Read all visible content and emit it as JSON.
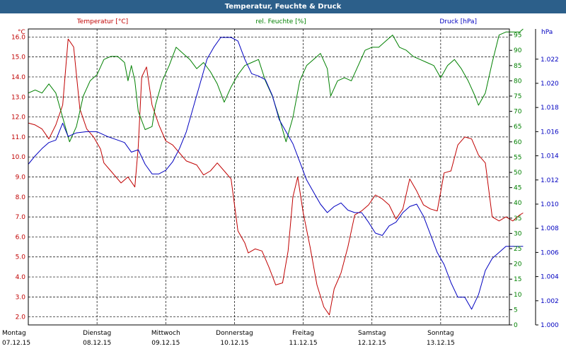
{
  "window": {
    "title": "Temperatur, Feuchte & Druck"
  },
  "colors": {
    "temperature": "#c00000",
    "humidity": "#008000",
    "pressure": "#0000c0",
    "titlebar": "#2c5f8a",
    "grid": "#000000"
  },
  "chart_data": {
    "type": "line",
    "title": "Temperatur, Feuchte & Druck",
    "grid": true,
    "x_labels": [
      {
        "day": "Montag",
        "date": "07.12.15"
      },
      {
        "day": "Dienstag",
        "date": "08.12.15"
      },
      {
        "day": "Mittwoch",
        "date": "09.12.15"
      },
      {
        "day": "Donnerstag",
        "date": "10.12.15"
      },
      {
        "day": "Freitag",
        "date": "11.12.15"
      },
      {
        "day": "Samstag",
        "date": "12.12.15"
      },
      {
        "day": "Sonntag",
        "date": "13.12.15"
      }
    ],
    "xlim": [
      0,
      7
    ],
    "axes": {
      "temperature": {
        "label": "Temperatur [°C]",
        "unit": "°C",
        "ylim": [
          1.6,
          16.4
        ],
        "ticks": [
          "2.0",
          "3.0",
          "4.0",
          "5.0",
          "6.0",
          "7.0",
          "8.0",
          "9.0",
          "10.0",
          "11.0",
          "12.0",
          "13.0",
          "14.0",
          "15.0",
          "16.0"
        ]
      },
      "humidity": {
        "label": "rel. Feuchte [%]",
        "unit": "%",
        "ylim": [
          0,
          97
        ],
        "ticks": [
          "0",
          "5",
          "10",
          "15",
          "20",
          "25",
          "30",
          "35",
          "40",
          "45",
          "50",
          "55",
          "60",
          "65",
          "70",
          "75",
          "80",
          "85",
          "90",
          "95"
        ]
      },
      "pressure": {
        "label": "Druck [hPa]",
        "unit": "hPa",
        "ylim": [
          1000,
          1024.5
        ],
        "ticks": [
          "1.000",
          "1.002",
          "1.004",
          "1.006",
          "1.008",
          "1.010",
          "1.012",
          "1.014",
          "1.016",
          "1.018",
          "1.020",
          "1.022"
        ]
      }
    },
    "series": [
      {
        "name": "Temperatur [°C]",
        "axis": "temperature",
        "color": "#c00000",
        "points": [
          [
            0,
            11.7
          ],
          [
            0.1,
            11.6
          ],
          [
            0.2,
            11.4
          ],
          [
            0.3,
            10.9
          ],
          [
            0.4,
            11.6
          ],
          [
            0.5,
            12.6
          ],
          [
            0.58,
            15.9
          ],
          [
            0.66,
            15.5
          ],
          [
            0.75,
            12.4
          ],
          [
            0.85,
            11.4
          ],
          [
            0.95,
            11.0
          ],
          [
            1.05,
            10.4
          ],
          [
            1.1,
            9.7
          ],
          [
            1.2,
            9.3
          ],
          [
            1.35,
            8.7
          ],
          [
            1.45,
            9.0
          ],
          [
            1.55,
            8.5
          ],
          [
            1.6,
            10.5
          ],
          [
            1.65,
            14.0
          ],
          [
            1.72,
            14.5
          ],
          [
            1.8,
            12.6
          ],
          [
            1.9,
            11.6
          ],
          [
            2.0,
            10.8
          ],
          [
            2.1,
            10.6
          ],
          [
            2.2,
            10.2
          ],
          [
            2.3,
            9.8
          ],
          [
            2.45,
            9.6
          ],
          [
            2.55,
            9.1
          ],
          [
            2.65,
            9.3
          ],
          [
            2.75,
            9.7
          ],
          [
            2.85,
            9.3
          ],
          [
            2.95,
            8.9
          ],
          [
            3.05,
            6.3
          ],
          [
            3.15,
            5.7
          ],
          [
            3.2,
            5.2
          ],
          [
            3.3,
            5.4
          ],
          [
            3.4,
            5.3
          ],
          [
            3.5,
            4.5
          ],
          [
            3.6,
            3.6
          ],
          [
            3.7,
            3.7
          ],
          [
            3.78,
            5.3
          ],
          [
            3.85,
            8.0
          ],
          [
            3.92,
            9.0
          ],
          [
            4.0,
            7.2
          ],
          [
            4.1,
            5.5
          ],
          [
            4.2,
            3.6
          ],
          [
            4.3,
            2.5
          ],
          [
            4.38,
            2.1
          ],
          [
            4.45,
            3.4
          ],
          [
            4.55,
            4.2
          ],
          [
            4.65,
            5.5
          ],
          [
            4.75,
            7.1
          ],
          [
            4.85,
            7.3
          ],
          [
            4.95,
            7.6
          ],
          [
            5.05,
            8.1
          ],
          [
            5.15,
            7.9
          ],
          [
            5.25,
            7.6
          ],
          [
            5.35,
            6.9
          ],
          [
            5.45,
            7.4
          ],
          [
            5.55,
            8.9
          ],
          [
            5.65,
            8.3
          ],
          [
            5.75,
            7.6
          ],
          [
            5.85,
            7.4
          ],
          [
            5.95,
            7.3
          ],
          [
            6.05,
            9.2
          ],
          [
            6.15,
            9.3
          ],
          [
            6.25,
            10.6
          ],
          [
            6.35,
            11.0
          ],
          [
            6.45,
            10.9
          ],
          [
            6.55,
            10.1
          ],
          [
            6.65,
            9.7
          ],
          [
            6.75,
            7.0
          ],
          [
            6.85,
            6.8
          ],
          [
            6.95,
            7.0
          ],
          [
            7.05,
            6.8
          ],
          [
            7.15,
            7.1
          ],
          [
            7.2,
            7.2
          ]
        ]
      },
      {
        "name": "rel. Feuchte [%]",
        "axis": "humidity",
        "color": "#008000",
        "points": [
          [
            0,
            76
          ],
          [
            0.1,
            77
          ],
          [
            0.2,
            76
          ],
          [
            0.3,
            79
          ],
          [
            0.4,
            76
          ],
          [
            0.5,
            68
          ],
          [
            0.6,
            60
          ],
          [
            0.7,
            65
          ],
          [
            0.8,
            75
          ],
          [
            0.9,
            80
          ],
          [
            1.0,
            82
          ],
          [
            1.1,
            87
          ],
          [
            1.2,
            88
          ],
          [
            1.3,
            88
          ],
          [
            1.4,
            86
          ],
          [
            1.45,
            80
          ],
          [
            1.5,
            85
          ],
          [
            1.55,
            80
          ],
          [
            1.6,
            70
          ],
          [
            1.7,
            64
          ],
          [
            1.8,
            65
          ],
          [
            1.85,
            72
          ],
          [
            1.95,
            80
          ],
          [
            2.05,
            85
          ],
          [
            2.15,
            91
          ],
          [
            2.25,
            89
          ],
          [
            2.35,
            87
          ],
          [
            2.45,
            84
          ],
          [
            2.55,
            86
          ],
          [
            2.65,
            83
          ],
          [
            2.75,
            79
          ],
          [
            2.85,
            73
          ],
          [
            2.95,
            78
          ],
          [
            3.05,
            82
          ],
          [
            3.15,
            85
          ],
          [
            3.25,
            86
          ],
          [
            3.35,
            87
          ],
          [
            3.45,
            80
          ],
          [
            3.55,
            75
          ],
          [
            3.65,
            68
          ],
          [
            3.75,
            60
          ],
          [
            3.85,
            68
          ],
          [
            3.95,
            80
          ],
          [
            4.05,
            85
          ],
          [
            4.15,
            87
          ],
          [
            4.25,
            89
          ],
          [
            4.35,
            84
          ],
          [
            4.4,
            75
          ],
          [
            4.5,
            80
          ],
          [
            4.6,
            81
          ],
          [
            4.7,
            80
          ],
          [
            4.8,
            85
          ],
          [
            4.9,
            90
          ],
          [
            5.0,
            91
          ],
          [
            5.1,
            91
          ],
          [
            5.2,
            93
          ],
          [
            5.3,
            95
          ],
          [
            5.4,
            91
          ],
          [
            5.5,
            90
          ],
          [
            5.6,
            88
          ],
          [
            5.7,
            87
          ],
          [
            5.8,
            86
          ],
          [
            5.9,
            85
          ],
          [
            6.0,
            81
          ],
          [
            6.1,
            85
          ],
          [
            6.2,
            87
          ],
          [
            6.3,
            84
          ],
          [
            6.4,
            80
          ],
          [
            6.5,
            75
          ],
          [
            6.55,
            72
          ],
          [
            6.65,
            76
          ],
          [
            6.75,
            86
          ],
          [
            6.85,
            95
          ],
          [
            6.95,
            96
          ],
          [
            7.05,
            96
          ],
          [
            7.15,
            96
          ],
          [
            7.2,
            97
          ]
        ]
      },
      {
        "name": "Druck [hPa]",
        "axis": "pressure",
        "color": "#0000c0",
        "points": [
          [
            0,
            1013.3
          ],
          [
            0.1,
            1014.0
          ],
          [
            0.2,
            1014.6
          ],
          [
            0.3,
            1015.1
          ],
          [
            0.4,
            1015.3
          ],
          [
            0.5,
            1016.7
          ],
          [
            0.58,
            1015.6
          ],
          [
            0.7,
            1015.9
          ],
          [
            0.85,
            1016.0
          ],
          [
            1.0,
            1016.0
          ],
          [
            1.15,
            1015.6
          ],
          [
            1.3,
            1015.3
          ],
          [
            1.4,
            1015.1
          ],
          [
            1.5,
            1014.3
          ],
          [
            1.6,
            1014.5
          ],
          [
            1.7,
            1013.3
          ],
          [
            1.8,
            1012.5
          ],
          [
            1.9,
            1012.5
          ],
          [
            2.0,
            1012.8
          ],
          [
            2.1,
            1013.5
          ],
          [
            2.2,
            1014.6
          ],
          [
            2.3,
            1016.0
          ],
          [
            2.4,
            1018.0
          ],
          [
            2.5,
            1020.0
          ],
          [
            2.6,
            1022.0
          ],
          [
            2.7,
            1023.0
          ],
          [
            2.8,
            1023.8
          ],
          [
            2.95,
            1023.8
          ],
          [
            3.05,
            1023.5
          ],
          [
            3.15,
            1022.0
          ],
          [
            3.25,
            1020.8
          ],
          [
            3.35,
            1020.6
          ],
          [
            3.45,
            1020.3
          ],
          [
            3.55,
            1019.0
          ],
          [
            3.65,
            1017.0
          ],
          [
            3.75,
            1016.0
          ],
          [
            3.85,
            1015.0
          ],
          [
            3.95,
            1013.5
          ],
          [
            4.05,
            1012.0
          ],
          [
            4.15,
            1011.0
          ],
          [
            4.25,
            1010.0
          ],
          [
            4.35,
            1009.3
          ],
          [
            4.45,
            1009.8
          ],
          [
            4.55,
            1010.1
          ],
          [
            4.65,
            1009.5
          ],
          [
            4.75,
            1009.3
          ],
          [
            4.85,
            1009.3
          ],
          [
            4.95,
            1008.5
          ],
          [
            5.05,
            1007.6
          ],
          [
            5.15,
            1007.4
          ],
          [
            5.25,
            1008.2
          ],
          [
            5.35,
            1008.5
          ],
          [
            5.45,
            1009.3
          ],
          [
            5.55,
            1009.8
          ],
          [
            5.65,
            1010.0
          ],
          [
            5.75,
            1009.0
          ],
          [
            5.85,
            1007.5
          ],
          [
            5.95,
            1006.0
          ],
          [
            6.05,
            1005.0
          ],
          [
            6.15,
            1003.5
          ],
          [
            6.25,
            1002.3
          ],
          [
            6.35,
            1002.3
          ],
          [
            6.45,
            1001.3
          ],
          [
            6.55,
            1002.5
          ],
          [
            6.65,
            1004.5
          ],
          [
            6.75,
            1005.5
          ],
          [
            6.85,
            1006.0
          ],
          [
            6.95,
            1006.5
          ],
          [
            7.05,
            1006.5
          ],
          [
            7.15,
            1006.5
          ],
          [
            7.2,
            1006.5
          ]
        ]
      }
    ]
  }
}
